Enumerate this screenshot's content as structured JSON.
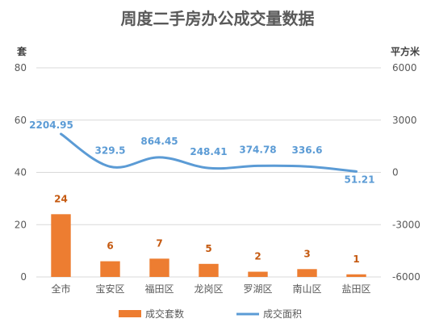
{
  "chart_data": {
    "type": "bar",
    "title": "周度二手房办公成交量数据",
    "categories": [
      "全市",
      "宝安区",
      "福田区",
      "龙岗区",
      "罗湖区",
      "南山区",
      "盐田区"
    ],
    "y_left": {
      "label": "套",
      "ylim": [
        0,
        80
      ],
      "ticks": [
        0,
        20,
        40,
        60,
        80
      ]
    },
    "y_right": {
      "label": "平方米",
      "ylim": [
        -6000,
        6000
      ],
      "ticks": [
        -6000,
        -3000,
        0,
        3000,
        6000
      ]
    },
    "series": [
      {
        "name": "成交套数",
        "type": "bar",
        "axis": "left",
        "values": [
          24,
          6,
          7,
          5,
          2,
          3,
          1
        ],
        "labels": [
          "24",
          "6",
          "7",
          "5",
          "2",
          "3",
          "1"
        ]
      },
      {
        "name": "成交面积",
        "type": "line",
        "axis": "right",
        "smooth": true,
        "values": [
          2204.95,
          329.5,
          864.45,
          248.41,
          374.78,
          336.6,
          51.21
        ],
        "labels": [
          "2204.95",
          "329.5",
          "864.45",
          "248.41",
          "374.78",
          "336.6",
          "51.21"
        ]
      }
    ],
    "grid": true,
    "legend": "bottom"
  },
  "colors": {
    "bar": "#ED7D31",
    "line": "#5B9BD5",
    "grid": "#D9D9D9",
    "axis_text": "#595959",
    "title": "#595959"
  }
}
